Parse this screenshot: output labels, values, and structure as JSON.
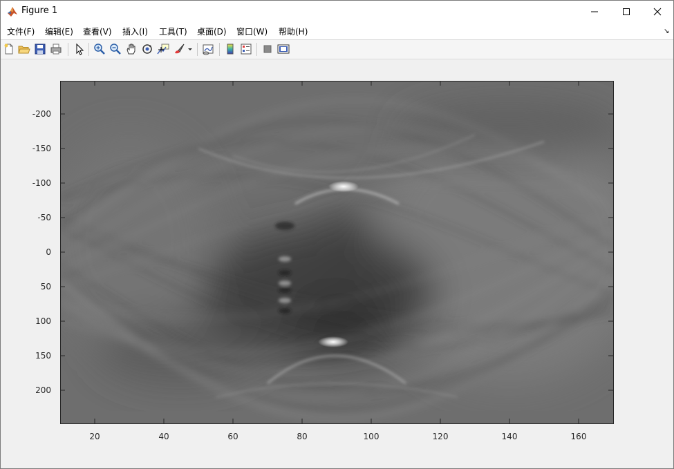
{
  "window": {
    "title": "Figure 1",
    "icon": "matlab-icon",
    "controls": [
      "minimize-icon",
      "maximize-icon",
      "close-icon"
    ]
  },
  "menu": {
    "items": [
      {
        "label": "文件(F)"
      },
      {
        "label": "编辑(E)"
      },
      {
        "label": "查看(V)"
      },
      {
        "label": "插入(I)"
      },
      {
        "label": "工具(T)"
      },
      {
        "label": "桌面(D)"
      },
      {
        "label": "窗口(W)"
      },
      {
        "label": "帮助(H)"
      }
    ],
    "dock_arrow": "↘"
  },
  "toolbar": {
    "buttons": [
      "new-figure-icon",
      "open-file-icon",
      "save-icon",
      "print-icon",
      "select-arrow-icon",
      "zoom-in-icon",
      "zoom-out-icon",
      "pan-hand-icon",
      "rotate-3d-icon",
      "data-cursor-icon",
      "brush-icon",
      "brush-dropdown-icon",
      "link-plot-icon",
      "insert-colorbar-icon",
      "insert-legend-icon",
      "hide-plot-tools-icon",
      "show-plot-tools-icon"
    ]
  },
  "chart_data": {
    "type": "heatmap",
    "colormap": "gray",
    "title": "",
    "xlabel": "",
    "ylabel": "",
    "xlim": [
      10,
      170
    ],
    "ylim": [
      -248,
      248
    ],
    "y_reversed": true,
    "x_ticks": [
      "20",
      "40",
      "60",
      "80",
      "100",
      "120",
      "140",
      "160"
    ],
    "y_ticks": [
      "-200",
      "-150",
      "-100",
      "-50",
      "0",
      "50",
      "100",
      "150",
      "200"
    ],
    "features": [
      {
        "name": "bright spot",
        "x": 92,
        "y": -95
      },
      {
        "name": "bright spot",
        "x": 89,
        "y": 130
      }
    ]
  }
}
